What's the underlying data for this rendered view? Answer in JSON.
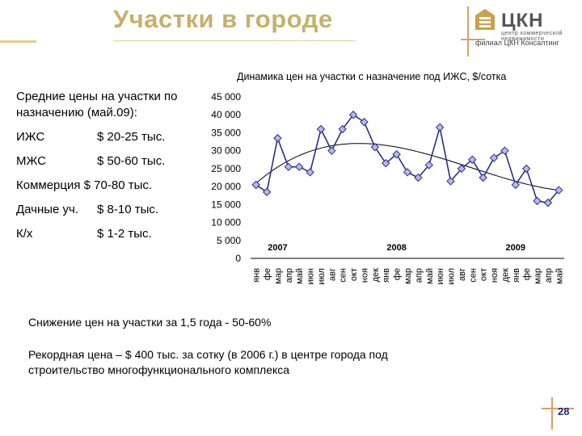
{
  "slide": {
    "title": "Участки в городе",
    "page_number": "28"
  },
  "logo": {
    "name": "ЦКН",
    "subtitle": "центр коммерческой недвижимости",
    "tagline": "филиал ЦКН Консалтинг"
  },
  "summary": {
    "heading": "Средние цены на участки по назначению (май.09):",
    "items": [
      {
        "label": "ИЖС",
        "value": "$ 20-25 тыс."
      },
      {
        "label": "МЖС",
        "value": "$ 50-60 тыс."
      },
      {
        "label": "Коммерция",
        "value": "$ 70-80 тыс."
      },
      {
        "label": "Дачные уч.",
        "value": "$ 8-10 тыс."
      },
      {
        "label": "К/х",
        "value": "$ 1-2 тыс."
      }
    ]
  },
  "notes": {
    "decline": "Снижение цен на участки за 1,5 года  -  50-60%",
    "record": "Рекордная цена – $ 400 тыс. за сотку (в 2006 г.) в центре города под строительство многофункционального комплекса"
  },
  "colors": {
    "title": "#c8b06a",
    "series_line": "#2a2f8a",
    "marker_fill": "#b9b8ea",
    "trend": "#000000",
    "accent_line": "#d9a066"
  },
  "chart_data": {
    "type": "line",
    "title": "Динамика цен на участки с назначение под ИЖС, $/сотка",
    "categories": [
      "янв",
      "фе",
      "мар",
      "апр",
      "май",
      "июн",
      "июл",
      "авг",
      "сен",
      "окт",
      "ноя",
      "дек",
      "янв",
      "фе",
      "мар",
      "апр",
      "май",
      "июн",
      "июл",
      "авг",
      "сен",
      "окт",
      "ноя",
      "дек",
      "янв",
      "фе",
      "мар",
      "апр",
      "май"
    ],
    "year_labels": [
      {
        "label": "2007",
        "index": 2
      },
      {
        "label": "2008",
        "index": 13
      },
      {
        "label": "2009",
        "index": 24
      }
    ],
    "series": [
      {
        "values": [
          20500,
          18500,
          33500,
          25500,
          25500,
          24000,
          36000,
          30000,
          36000,
          40000,
          38000,
          31000,
          26500,
          29000,
          24000,
          22500,
          26000,
          36500,
          21500,
          25000,
          27500,
          22500,
          28000,
          30000,
          20500,
          25000,
          16000,
          15500,
          19000
        ]
      }
    ],
    "trend": {
      "type": "polynomial"
    },
    "yticks": [
      "0",
      "5 000",
      "10 000",
      "15 000",
      "20 000",
      "25 000",
      "30 000",
      "35 000",
      "40 000",
      "45 000"
    ],
    "ylim": [
      0,
      45000
    ],
    "grid": false,
    "legend": "none"
  }
}
